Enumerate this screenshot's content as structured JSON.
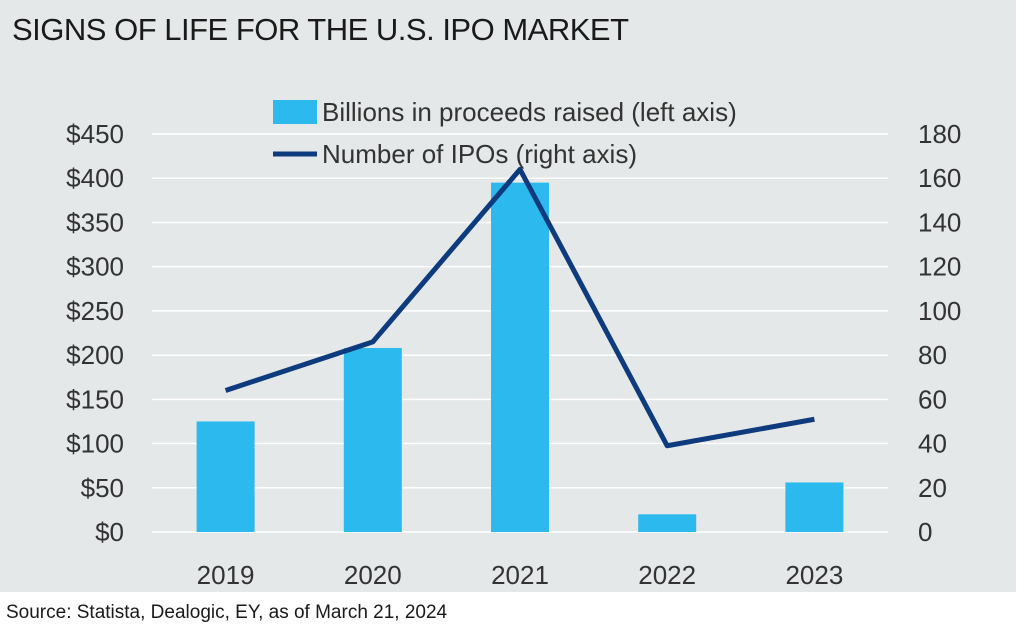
{
  "title": "SIGNS OF LIFE FOR THE U.S. IPO MARKET",
  "source": "Source: Statista, Dealogic, EY, as of March 21, 2024",
  "colors": {
    "bar": "#2bb9ee",
    "line": "#0e3a7e",
    "grid": "#ffffff",
    "panel": "#e4e8e8"
  },
  "chart_data": {
    "type": "bar",
    "categories": [
      "2019",
      "2020",
      "2021",
      "2022",
      "2023"
    ],
    "series": [
      {
        "name": "Billions in proceeds raised (left axis)",
        "type": "bar",
        "axis": "left",
        "values": [
          125,
          208,
          395,
          20,
          56
        ]
      },
      {
        "name": "Number of IPOs (right axis)",
        "type": "line",
        "axis": "right",
        "values": [
          64,
          86,
          164,
          39,
          51
        ]
      }
    ],
    "y_left": {
      "min": 0,
      "max": 450,
      "ticks": [
        "$0",
        "$50",
        "$100",
        "$150",
        "$200",
        "$250",
        "$300",
        "$350",
        "$400",
        "$450"
      ]
    },
    "y_right": {
      "min": 0,
      "max": 180,
      "ticks": [
        "0",
        "20",
        "40",
        "60",
        "80",
        "100",
        "120",
        "140",
        "160",
        "180"
      ]
    },
    "grid": true,
    "legend_position": "top"
  }
}
